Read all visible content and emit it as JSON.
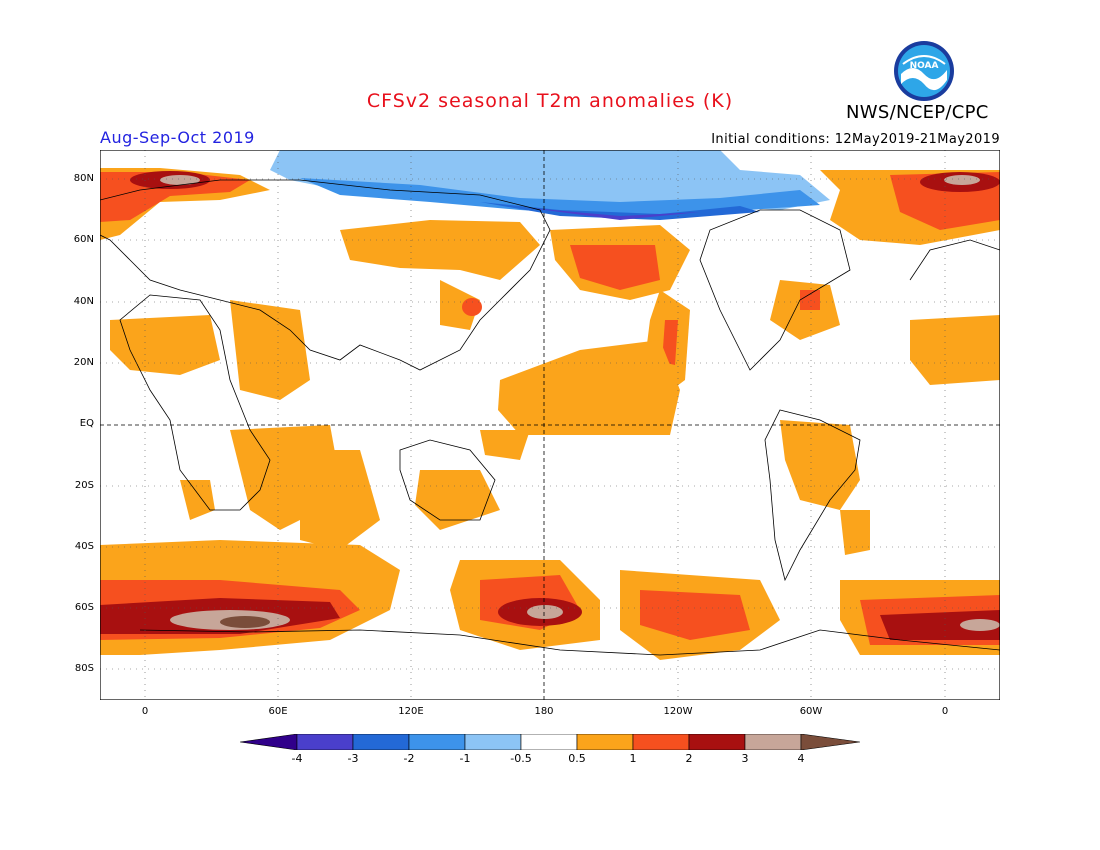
{
  "header": {
    "title": "CFSv2 seasonal T2m anomalies (K)",
    "season": "Aug-Sep-Oct 2019",
    "initial_conditions": "Initial conditions: 12May2019-21May2019",
    "agency": "NWS/NCEP/CPC",
    "logo_text": "NOAA"
  },
  "map": {
    "lat_labels": [
      "80N",
      "60N",
      "40N",
      "20N",
      "EQ",
      "20S",
      "40S",
      "60S",
      "80S"
    ],
    "lon_labels": [
      "0",
      "60E",
      "120E",
      "180",
      "120W",
      "60W",
      "0"
    ]
  },
  "colorbar": {
    "labels": [
      "-4",
      "-3",
      "-2",
      "-1",
      "-0.5",
      "0.5",
      "1",
      "2",
      "3",
      "4"
    ],
    "colors": [
      "#30008a",
      "#4a3fcb",
      "#2369d6",
      "#3d93ea",
      "#8cc4f5",
      "#ffffff",
      "#fba41b",
      "#f6501f",
      "#a81010",
      "#c7a699",
      "#7a4d3a"
    ]
  }
}
